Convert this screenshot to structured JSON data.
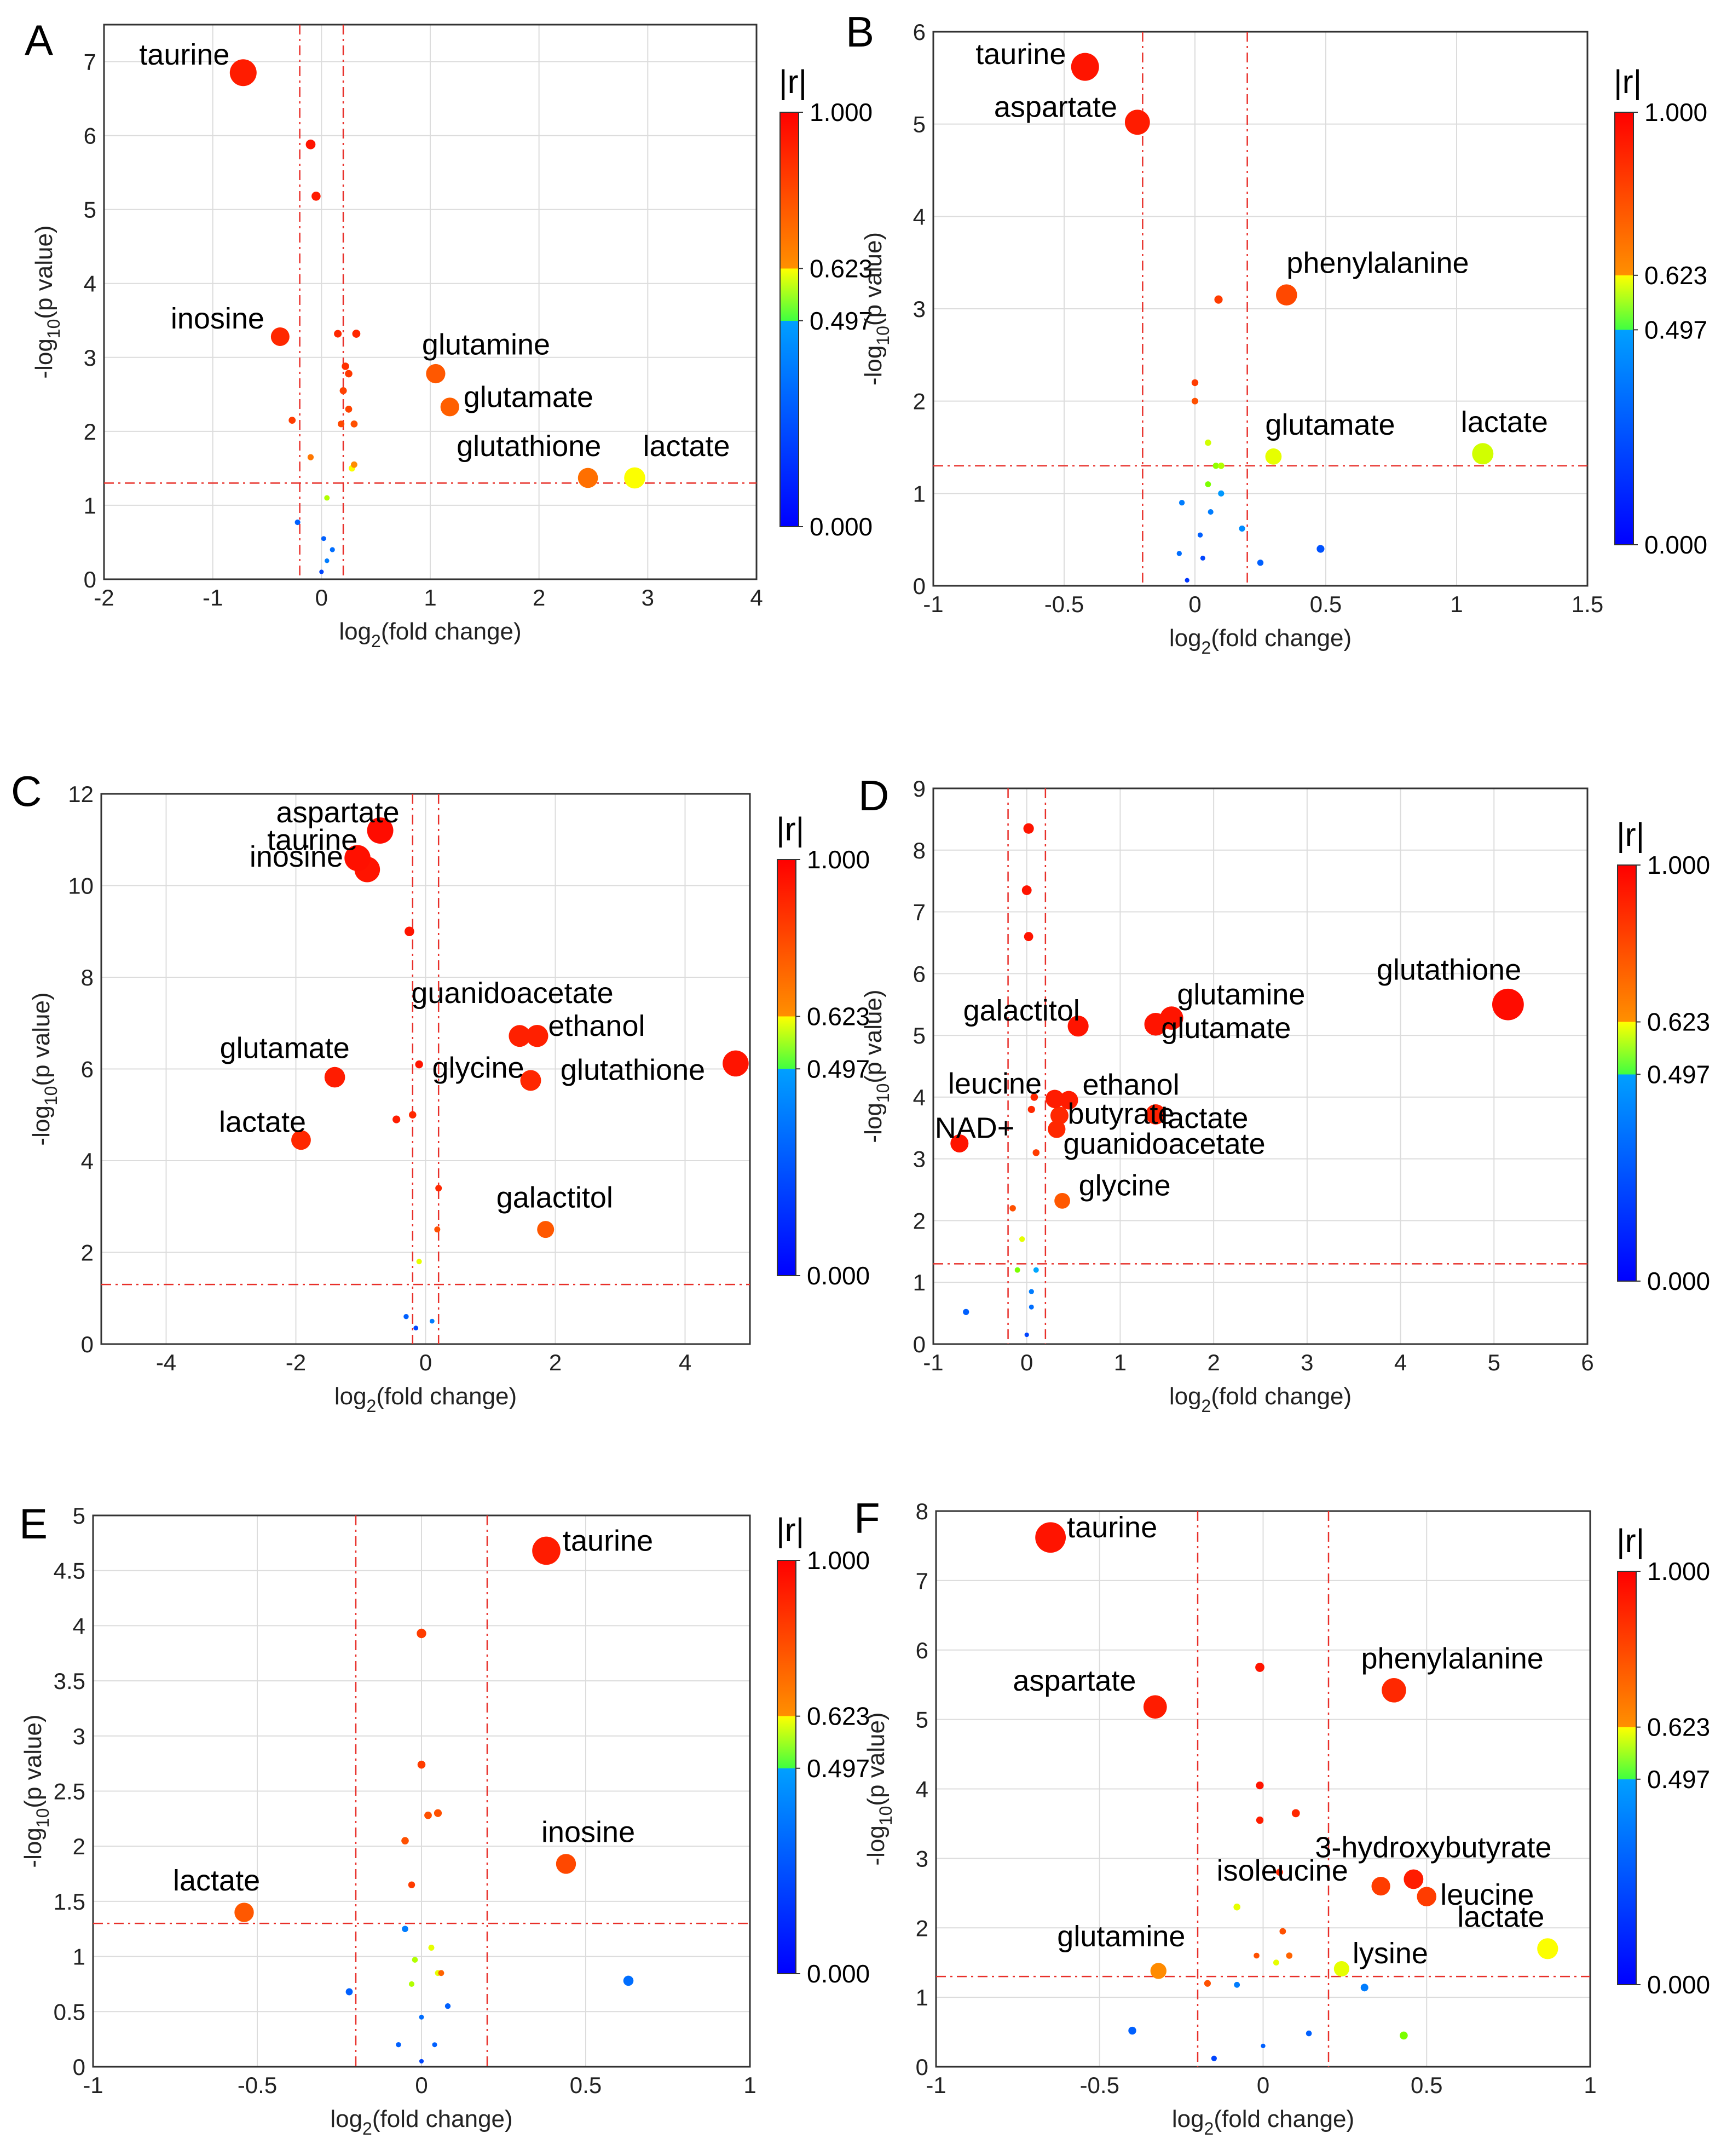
{
  "colorbar": {
    "title": "|r|",
    "ticks": [
      "1.000",
      "0.623",
      "0.497",
      "0.000"
    ],
    "colors": [
      "#ff0000",
      "#ff8000",
      "#ffff00",
      "#40ff40",
      "#0080ff",
      "#0000ff"
    ]
  },
  "chart_data": [
    {
      "panel": "A",
      "type": "scatter",
      "xlabel": "log2(fold change)",
      "ylabel": "-log10(p value)",
      "xlim": [
        -2,
        4
      ],
      "ylim": [
        0,
        7.5
      ],
      "xticks": [
        "-2",
        "-1",
        "0",
        "1",
        "2",
        "3",
        "4"
      ],
      "yticks": [
        "0",
        "1",
        "2",
        "3",
        "4",
        "5",
        "6",
        "7"
      ],
      "fc_threshold": 0.2,
      "p_threshold": 1.3,
      "points": [
        {
          "label": "taurine",
          "x": -0.72,
          "y": 6.85,
          "r": 0.93
        },
        {
          "label": "inosine",
          "x": -0.38,
          "y": 3.28,
          "r": 0.9
        },
        {
          "label": "glutamine",
          "x": 1.05,
          "y": 2.78,
          "r": 0.78
        },
        {
          "label": "glutamate",
          "x": 1.18,
          "y": 2.33,
          "r": 0.76
        },
        {
          "label": "glutathione",
          "x": 2.45,
          "y": 1.37,
          "r": 0.72
        },
        {
          "label": "lactate",
          "x": 2.88,
          "y": 1.37,
          "r": 0.62
        },
        {
          "label": "",
          "x": -0.1,
          "y": 5.88,
          "r": 0.95
        },
        {
          "label": "",
          "x": -0.05,
          "y": 5.18,
          "r": 0.93
        },
        {
          "label": "",
          "x": -0.27,
          "y": 2.15,
          "r": 0.85
        },
        {
          "label": "",
          "x": 0.15,
          "y": 3.32,
          "r": 0.9
        },
        {
          "label": "",
          "x": 0.22,
          "y": 2.88,
          "r": 0.88
        },
        {
          "label": "",
          "x": 0.25,
          "y": 2.78,
          "r": 0.86
        },
        {
          "label": "",
          "x": 0.2,
          "y": 2.55,
          "r": 0.84
        },
        {
          "label": "",
          "x": 0.32,
          "y": 3.32,
          "r": 0.9
        },
        {
          "label": "",
          "x": 0.25,
          "y": 2.3,
          "r": 0.83
        },
        {
          "label": "",
          "x": 0.3,
          "y": 2.1,
          "r": 0.8
        },
        {
          "label": "",
          "x": 0.18,
          "y": 2.1,
          "r": 0.82
        },
        {
          "label": "",
          "x": 0.3,
          "y": 1.55,
          "r": 0.65
        },
        {
          "label": "",
          "x": 0.28,
          "y": 1.5,
          "r": 0.62
        },
        {
          "label": "",
          "x": -0.1,
          "y": 1.65,
          "r": 0.7
        },
        {
          "label": "",
          "x": 0.05,
          "y": 1.1,
          "r": 0.55
        },
        {
          "label": "",
          "x": -0.22,
          "y": 0.77,
          "r": 0.2
        },
        {
          "label": "",
          "x": 0.02,
          "y": 0.55,
          "r": 0.2
        },
        {
          "label": "",
          "x": 0.1,
          "y": 0.4,
          "r": 0.25
        },
        {
          "label": "",
          "x": 0.05,
          "y": 0.25,
          "r": 0.3
        },
        {
          "label": "",
          "x": 0.0,
          "y": 0.1,
          "r": 0.1
        }
      ]
    },
    {
      "panel": "B",
      "type": "scatter",
      "xlabel": "log2(fold change)",
      "ylabel": "-log10(p value)",
      "xlim": [
        -1,
        1.5
      ],
      "ylim": [
        0,
        6
      ],
      "xticks": [
        "-1",
        "-0.5",
        "0",
        "0.5",
        "1",
        "1.5"
      ],
      "yticks": [
        "0",
        "1",
        "2",
        "3",
        "4",
        "5",
        "6"
      ],
      "fc_threshold": 0.2,
      "p_threshold": 1.3,
      "points": [
        {
          "label": "taurine",
          "x": -0.42,
          "y": 5.62,
          "r": 0.95
        },
        {
          "label": "aspartate",
          "x": -0.22,
          "y": 5.02,
          "r": 0.93
        },
        {
          "label": "phenylalanine",
          "x": 0.35,
          "y": 3.15,
          "r": 0.82
        },
        {
          "label": "glutamate",
          "x": 0.3,
          "y": 1.4,
          "r": 0.6
        },
        {
          "label": "lactate",
          "x": 1.1,
          "y": 1.43,
          "r": 0.58
        },
        {
          "label": "",
          "x": 0.09,
          "y": 3.1,
          "r": 0.85
        },
        {
          "label": "",
          "x": 0.0,
          "y": 2.0,
          "r": 0.8
        },
        {
          "label": "",
          "x": 0.0,
          "y": 2.2,
          "r": 0.85
        },
        {
          "label": "",
          "x": 0.08,
          "y": 1.3,
          "r": 0.52
        },
        {
          "label": "",
          "x": 0.05,
          "y": 1.55,
          "r": 0.58
        },
        {
          "label": "",
          "x": 0.1,
          "y": 1.3,
          "r": 0.55
        },
        {
          "label": "",
          "x": 0.05,
          "y": 1.1,
          "r": 0.5
        },
        {
          "label": "",
          "x": 0.18,
          "y": 0.62,
          "r": 0.35
        },
        {
          "label": "",
          "x": 0.25,
          "y": 0.25,
          "r": 0.2
        },
        {
          "label": "",
          "x": 0.48,
          "y": 0.4,
          "r": 0.15
        },
        {
          "label": "",
          "x": -0.03,
          "y": 0.06,
          "r": 0.05
        },
        {
          "label": "",
          "x": 0.03,
          "y": 0.3,
          "r": 0.1
        },
        {
          "label": "",
          "x": -0.05,
          "y": 0.9,
          "r": 0.3
        },
        {
          "label": "",
          "x": 0.06,
          "y": 0.8,
          "r": 0.3
        },
        {
          "label": "",
          "x": 0.1,
          "y": 1.0,
          "r": 0.4
        },
        {
          "label": "",
          "x": -0.06,
          "y": 0.35,
          "r": 0.25
        },
        {
          "label": "",
          "x": 0.02,
          "y": 0.55,
          "r": 0.2
        }
      ]
    },
    {
      "panel": "C",
      "type": "scatter",
      "xlabel": "log2(fold change)",
      "ylabel": "-log10(p value)",
      "xlim": [
        -5,
        5
      ],
      "ylim": [
        0,
        12
      ],
      "xticks": [
        "-4",
        "-2",
        "0",
        "2",
        "4"
      ],
      "xtick_values": [
        -4,
        -2,
        0,
        2,
        4
      ],
      "yticks": [
        "0",
        "2",
        "4",
        "6",
        "8",
        "10",
        "12"
      ],
      "fc_threshold": 0.2,
      "p_threshold": 1.3,
      "points": [
        {
          "label": "aspartate",
          "x": -0.7,
          "y": 11.2,
          "r": 0.97
        },
        {
          "label": "taurine",
          "x": -1.05,
          "y": 10.6,
          "r": 0.96
        },
        {
          "label": "inosine",
          "x": -0.9,
          "y": 10.35,
          "r": 0.95
        },
        {
          "label": "guanidoacetate",
          "x": 1.45,
          "y": 6.72,
          "r": 0.92
        },
        {
          "label": "ethanol",
          "x": 1.72,
          "y": 6.72,
          "r": 0.92
        },
        {
          "label": "glycine",
          "x": 1.62,
          "y": 5.75,
          "r": 0.9
        },
        {
          "label": "glutathione",
          "x": 4.78,
          "y": 6.12,
          "r": 0.95
        },
        {
          "label": "glutamate",
          "x": -1.4,
          "y": 5.82,
          "r": 0.93
        },
        {
          "label": "lactate",
          "x": -1.92,
          "y": 4.45,
          "r": 0.9
        },
        {
          "label": "galactitol",
          "x": 1.85,
          "y": 2.5,
          "r": 0.78
        },
        {
          "label": "",
          "x": -0.25,
          "y": 9.0,
          "r": 0.95
        },
        {
          "label": "",
          "x": -0.1,
          "y": 6.1,
          "r": 0.95
        },
        {
          "label": "",
          "x": -0.45,
          "y": 4.9,
          "r": 0.93
        },
        {
          "label": "",
          "x": -0.2,
          "y": 5.0,
          "r": 0.9
        },
        {
          "label": "",
          "x": 0.2,
          "y": 3.4,
          "r": 0.9
        },
        {
          "label": "",
          "x": 0.18,
          "y": 2.5,
          "r": 0.8
        },
        {
          "label": "",
          "x": -0.1,
          "y": 1.8,
          "r": 0.6
        },
        {
          "label": "",
          "x": -0.15,
          "y": 0.35,
          "r": 0.1
        },
        {
          "label": "",
          "x": -0.3,
          "y": 0.6,
          "r": 0.2
        },
        {
          "label": "",
          "x": 0.1,
          "y": 0.5,
          "r": 0.3
        }
      ]
    },
    {
      "panel": "D",
      "type": "scatter",
      "xlabel": "log2(fold change)",
      "ylabel": "-log10(p value)",
      "xlim": [
        -1,
        6
      ],
      "ylim": [
        0,
        9
      ],
      "xticks": [
        "-1",
        "0",
        "1",
        "2",
        "3",
        "4",
        "5",
        "6"
      ],
      "yticks": [
        "0",
        "1",
        "2",
        "3",
        "4",
        "5",
        "6",
        "7",
        "8",
        "9"
      ],
      "fc_threshold": 0.2,
      "p_threshold": 1.3,
      "points": [
        {
          "label": "glutathione",
          "x": 5.15,
          "y": 5.5,
          "r": 0.97
        },
        {
          "label": "galactitol",
          "x": 0.55,
          "y": 5.15,
          "r": 0.95
        },
        {
          "label": "glutamine",
          "x": 1.55,
          "y": 5.28,
          "r": 0.95
        },
        {
          "label": "glutamate",
          "x": 1.38,
          "y": 5.18,
          "r": 0.95
        },
        {
          "label": "leucine",
          "x": 0.3,
          "y": 3.97,
          "r": 0.93
        },
        {
          "label": "ethanol",
          "x": 0.45,
          "y": 3.95,
          "r": 0.93
        },
        {
          "label": "lactate",
          "x": 1.38,
          "y": 3.72,
          "r": 0.92
        },
        {
          "label": "butyrate",
          "x": 0.35,
          "y": 3.7,
          "r": 0.9
        },
        {
          "label": "NAD+",
          "x": -0.72,
          "y": 3.25,
          "r": 0.95
        },
        {
          "label": "guanidoacetate",
          "x": 0.32,
          "y": 3.48,
          "r": 0.9
        },
        {
          "label": "glycine",
          "x": 0.38,
          "y": 2.32,
          "r": 0.78
        },
        {
          "label": "",
          "x": 0.02,
          "y": 8.35,
          "r": 0.95
        },
        {
          "label": "",
          "x": 0.0,
          "y": 7.35,
          "r": 0.95
        },
        {
          "label": "",
          "x": 0.02,
          "y": 6.6,
          "r": 0.95
        },
        {
          "label": "",
          "x": 0.08,
          "y": 4.0,
          "r": 0.9
        },
        {
          "label": "",
          "x": 0.05,
          "y": 3.8,
          "r": 0.9
        },
        {
          "label": "",
          "x": 0.1,
          "y": 3.1,
          "r": 0.85
        },
        {
          "label": "",
          "x": -0.15,
          "y": 2.2,
          "r": 0.8
        },
        {
          "label": "",
          "x": -0.05,
          "y": 1.7,
          "r": 0.6
        },
        {
          "label": "",
          "x": -0.1,
          "y": 1.2,
          "r": 0.5
        },
        {
          "label": "",
          "x": 0.1,
          "y": 1.2,
          "r": 0.45
        },
        {
          "label": "",
          "x": 0.05,
          "y": 0.85,
          "r": 0.3
        },
        {
          "label": "",
          "x": -0.65,
          "y": 0.52,
          "r": 0.2
        },
        {
          "label": "",
          "x": 0.05,
          "y": 0.6,
          "r": 0.25
        },
        {
          "label": "",
          "x": 0.0,
          "y": 0.15,
          "r": 0.1
        }
      ]
    },
    {
      "panel": "E",
      "type": "scatter",
      "xlabel": "log2(fold change)",
      "ylabel": "-log10(p value)",
      "xlim": [
        -1,
        1
      ],
      "ylim": [
        0,
        5
      ],
      "xticks": [
        "-1",
        "-0.5",
        "0",
        "0.5",
        "1"
      ],
      "yticks": [
        "0",
        "0.5",
        "1",
        "1.5",
        "2",
        "2.5",
        "3",
        "3.5",
        "4",
        "4.5",
        "5"
      ],
      "fc_threshold": 0.2,
      "p_threshold": 1.3,
      "points": [
        {
          "label": "taurine",
          "x": 0.38,
          "y": 4.68,
          "r": 0.93
        },
        {
          "label": "inosine",
          "x": 0.44,
          "y": 1.84,
          "r": 0.82
        },
        {
          "label": "lactate",
          "x": -0.54,
          "y": 1.4,
          "r": 0.78
        },
        {
          "label": "",
          "x": 0.0,
          "y": 3.93,
          "r": 0.85
        },
        {
          "label": "",
          "x": 0.0,
          "y": 2.74,
          "r": 0.85
        },
        {
          "label": "",
          "x": 0.02,
          "y": 2.28,
          "r": 0.8
        },
        {
          "label": "",
          "x": 0.05,
          "y": 2.3,
          "r": 0.8
        },
        {
          "label": "",
          "x": -0.05,
          "y": 2.05,
          "r": 0.8
        },
        {
          "label": "",
          "x": -0.03,
          "y": 1.65,
          "r": 0.85
        },
        {
          "label": "",
          "x": 0.03,
          "y": 1.08,
          "r": 0.6
        },
        {
          "label": "",
          "x": -0.02,
          "y": 0.97,
          "r": 0.55
        },
        {
          "label": "",
          "x": 0.05,
          "y": 0.85,
          "r": 0.6
        },
        {
          "label": "",
          "x": 0.06,
          "y": 0.85,
          "r": 0.75
        },
        {
          "label": "",
          "x": -0.03,
          "y": 0.75,
          "r": 0.55
        },
        {
          "label": "",
          "x": -0.05,
          "y": 1.25,
          "r": 0.3
        },
        {
          "label": "",
          "x": -0.22,
          "y": 0.68,
          "r": 0.2
        },
        {
          "label": "",
          "x": 0.63,
          "y": 0.78,
          "r": 0.25
        },
        {
          "label": "",
          "x": 0.08,
          "y": 0.55,
          "r": 0.2
        },
        {
          "label": "",
          "x": -0.07,
          "y": 0.2,
          "r": 0.2
        },
        {
          "label": "",
          "x": 0.04,
          "y": 0.2,
          "r": 0.2
        },
        {
          "label": "",
          "x": 0.0,
          "y": 0.45,
          "r": 0.25
        },
        {
          "label": "",
          "x": 0.0,
          "y": 0.05,
          "r": 0.1
        }
      ]
    },
    {
      "panel": "F",
      "type": "scatter",
      "xlabel": "log2(fold change)",
      "ylabel": "-log10(p value)",
      "xlim": [
        -1,
        1
      ],
      "ylim": [
        0,
        8
      ],
      "xticks": [
        "-1",
        "-0.5",
        "0",
        "0.5",
        "1"
      ],
      "yticks": [
        "0",
        "1",
        "2",
        "3",
        "4",
        "5",
        "6",
        "7",
        "8"
      ],
      "fc_threshold": 0.2,
      "p_threshold": 1.3,
      "points": [
        {
          "label": "taurine",
          "x": -0.65,
          "y": 7.62,
          "r": 0.95
        },
        {
          "label": "aspartate",
          "x": -0.33,
          "y": 5.18,
          "r": 0.93
        },
        {
          "label": "phenylalanine",
          "x": 0.4,
          "y": 5.42,
          "r": 0.9
        },
        {
          "label": "3-hydroxybutyrate",
          "x": 0.46,
          "y": 2.7,
          "r": 0.93
        },
        {
          "label": "isoleucine",
          "x": 0.36,
          "y": 2.6,
          "r": 0.85
        },
        {
          "label": "leucine",
          "x": 0.5,
          "y": 2.45,
          "r": 0.85
        },
        {
          "label": "lactate",
          "x": 0.87,
          "y": 1.7,
          "r": 0.62
        },
        {
          "label": "lysine",
          "x": 0.24,
          "y": 1.41,
          "r": 0.6
        },
        {
          "label": "glutamine",
          "x": -0.32,
          "y": 1.38,
          "r": 0.65
        },
        {
          "label": "",
          "x": -0.01,
          "y": 5.75,
          "r": 0.95
        },
        {
          "label": "",
          "x": -0.01,
          "y": 4.05,
          "r": 0.95
        },
        {
          "label": "",
          "x": 0.1,
          "y": 3.65,
          "r": 0.9
        },
        {
          "label": "",
          "x": -0.01,
          "y": 3.55,
          "r": 0.93
        },
        {
          "label": "",
          "x": 0.05,
          "y": 2.8,
          "r": 0.9
        },
        {
          "label": "",
          "x": -0.08,
          "y": 2.3,
          "r": 0.6
        },
        {
          "label": "",
          "x": 0.06,
          "y": 1.95,
          "r": 0.8
        },
        {
          "label": "",
          "x": 0.08,
          "y": 1.6,
          "r": 0.75
        },
        {
          "label": "",
          "x": -0.02,
          "y": 1.6,
          "r": 0.8
        },
        {
          "label": "",
          "x": 0.04,
          "y": 1.5,
          "r": 0.6
        },
        {
          "label": "",
          "x": -0.17,
          "y": 1.2,
          "r": 0.8
        },
        {
          "label": "",
          "x": -0.08,
          "y": 1.18,
          "r": 0.3
        },
        {
          "label": "",
          "x": 0.31,
          "y": 1.14,
          "r": 0.3
        },
        {
          "label": "",
          "x": -0.4,
          "y": 0.52,
          "r": 0.2
        },
        {
          "label": "",
          "x": 0.14,
          "y": 0.48,
          "r": 0.2
        },
        {
          "label": "",
          "x": -0.15,
          "y": 0.12,
          "r": 0.1
        },
        {
          "label": "",
          "x": 0.0,
          "y": 0.3,
          "r": 0.2
        },
        {
          "label": "",
          "x": 0.43,
          "y": 0.45,
          "r": 0.5
        }
      ]
    }
  ]
}
